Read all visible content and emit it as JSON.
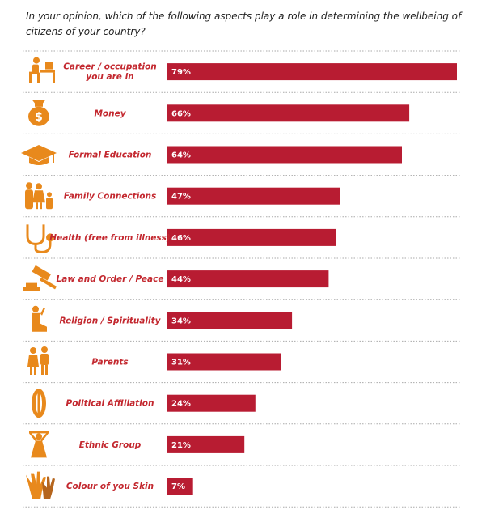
{
  "question": "In your opinion, which of the following aspects play a role in determining the wellbeing of citizens of your country?",
  "colors": {
    "bar": "#b81c32",
    "label": "#c3282f",
    "icon": "#e8891c"
  },
  "chart_data": {
    "type": "bar",
    "orientation": "horizontal",
    "title": "In your opinion, which of the following aspects play a role in determining the wellbeing of citizens of your country?",
    "categories": [
      [
        "Career / occupation",
        "you are in"
      ],
      [
        "Money"
      ],
      [
        "Formal Education"
      ],
      [
        "Family Connections"
      ],
      [
        "Health (free from illness)"
      ],
      [
        "Law and Order / Peace"
      ],
      [
        "Religion / Spirituality"
      ],
      [
        "Parents"
      ],
      [
        "Political Affiliation"
      ],
      [
        "Ethnic Group"
      ],
      [
        "Colour of you Skin"
      ]
    ],
    "values": [
      79,
      66,
      64,
      47,
      46,
      44,
      34,
      31,
      24,
      21,
      7
    ],
    "value_labels": [
      "79%",
      "66%",
      "64%",
      "47%",
      "46%",
      "44%",
      "34%",
      "31%",
      "24%",
      "21%",
      "7%"
    ],
    "icons": [
      "desk-worker-icon",
      "money-bag-icon",
      "graduation-cap-icon",
      "family-icon",
      "stethoscope-icon",
      "gavel-icon",
      "praying-person-icon",
      "parents-icon",
      "shield-icon",
      "woman-icon",
      "hands-icon"
    ],
    "xlim": [
      0,
      79
    ],
    "grid": false,
    "legend": "none"
  }
}
